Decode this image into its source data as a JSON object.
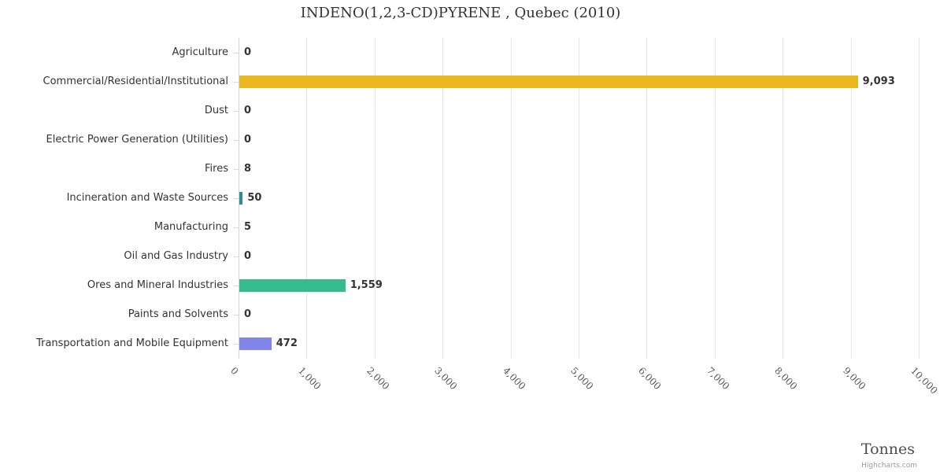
{
  "title": "INDENO(1,2,3-CD)PYRENE , Quebec (2010)",
  "chart_data": {
    "type": "bar",
    "orientation": "horizontal",
    "title": "INDENO(1,2,3-CD)PYRENE , Quebec (2010)",
    "categories": [
      "Agriculture",
      "Commercial/Residential/Institutional",
      "Dust",
      "Electric Power Generation (Utilities)",
      "Fires",
      "Incineration and Waste Sources",
      "Manufacturing",
      "Oil and Gas Industry",
      "Ores and Mineral Industries",
      "Paints and Solvents",
      "Transportation and Mobile Equipment"
    ],
    "values": [
      0,
      9093,
      0,
      0,
      8,
      50,
      5,
      0,
      1559,
      0,
      472
    ],
    "value_labels": [
      "0",
      "9,093",
      "0",
      "0",
      "8",
      "50",
      "5",
      "0",
      "1,559",
      "0",
      "472"
    ],
    "bar_colors": [
      "",
      "#e9b821",
      "",
      "",
      "",
      "#2b908f",
      "",
      "",
      "#36bb8d",
      "",
      "#8285e8"
    ],
    "xlabel": "Tonnes",
    "x_ticks": [
      "0",
      "1,000",
      "2,000",
      "3,000",
      "4,000",
      "5,000",
      "6,000",
      "7,000",
      "8,000",
      "9,000",
      "10,000"
    ],
    "xlim": [
      0,
      10000
    ],
    "grid": true,
    "gridline_color": "#e6e6e6",
    "axis_line_color": "#ccd6eb",
    "legend": "none",
    "credit": "Highcharts.com"
  }
}
